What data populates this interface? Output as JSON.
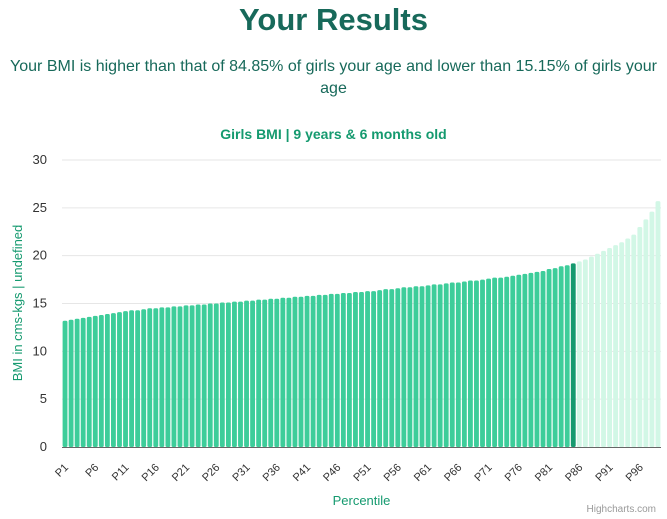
{
  "page": {
    "headline": "Your Results",
    "summary": "Your BMI is higher than that of 84.85% of girls your age and lower than 15.15% of girls your age"
  },
  "chart_data": {
    "type": "bar",
    "title": "Girls BMI | 9 years & 6 months old",
    "xlabel": "Percentile",
    "ylabel": "BMI in cms-kgs | undefined",
    "ylim": [
      0,
      30
    ],
    "yticks": [
      0,
      5,
      10,
      15,
      20,
      25,
      30
    ],
    "grid": true,
    "legend": "none",
    "categories": [
      "P1",
      "P2",
      "P3",
      "P4",
      "P5",
      "P6",
      "P7",
      "P8",
      "P9",
      "P10",
      "P11",
      "P12",
      "P13",
      "P14",
      "P15",
      "P16",
      "P17",
      "P18",
      "P19",
      "P20",
      "P21",
      "P22",
      "P23",
      "P24",
      "P25",
      "P26",
      "P27",
      "P28",
      "P29",
      "P30",
      "P31",
      "P32",
      "P33",
      "P34",
      "P35",
      "P36",
      "P37",
      "P38",
      "P39",
      "P40",
      "P41",
      "P42",
      "P43",
      "P44",
      "P45",
      "P46",
      "P47",
      "P48",
      "P49",
      "P50",
      "P51",
      "P52",
      "P53",
      "P54",
      "P55",
      "P56",
      "P57",
      "P58",
      "P59",
      "P60",
      "P61",
      "P62",
      "P63",
      "P64",
      "P65",
      "P66",
      "P67",
      "P68",
      "P69",
      "P70",
      "P71",
      "P72",
      "P73",
      "P74",
      "P75",
      "P76",
      "P77",
      "P78",
      "P79",
      "P80",
      "P81",
      "P82",
      "P83",
      "P84",
      "P85",
      "P86",
      "P87",
      "P88",
      "P89",
      "P90",
      "P91",
      "P92",
      "P93",
      "P94",
      "P95",
      "P96",
      "P97",
      "P98",
      "P99"
    ],
    "xtick_labels": [
      "P1",
      "P6",
      "P11",
      "P16",
      "P21",
      "P26",
      "P31",
      "P36",
      "P41",
      "P46",
      "P51",
      "P56",
      "P61",
      "P66",
      "P71",
      "P76",
      "P81",
      "P86",
      "P91",
      "P96"
    ],
    "values": [
      13.2,
      13.3,
      13.4,
      13.5,
      13.6,
      13.7,
      13.8,
      13.9,
      14.0,
      14.1,
      14.2,
      14.3,
      14.3,
      14.4,
      14.5,
      14.5,
      14.6,
      14.6,
      14.7,
      14.7,
      14.8,
      14.8,
      14.9,
      14.9,
      15.0,
      15.0,
      15.1,
      15.1,
      15.2,
      15.2,
      15.3,
      15.3,
      15.4,
      15.4,
      15.5,
      15.5,
      15.6,
      15.6,
      15.7,
      15.7,
      15.8,
      15.8,
      15.9,
      15.9,
      16.0,
      16.0,
      16.1,
      16.1,
      16.2,
      16.2,
      16.3,
      16.3,
      16.4,
      16.5,
      16.5,
      16.6,
      16.7,
      16.7,
      16.8,
      16.8,
      16.9,
      17.0,
      17.0,
      17.1,
      17.2,
      17.2,
      17.3,
      17.4,
      17.4,
      17.5,
      17.6,
      17.7,
      17.7,
      17.8,
      17.9,
      18.0,
      18.1,
      18.2,
      18.3,
      18.4,
      18.6,
      18.7,
      18.9,
      19.0,
      19.2,
      19.4,
      19.6,
      19.9,
      20.2,
      20.5,
      20.8,
      21.1,
      21.4,
      21.8,
      22.2,
      23.0,
      23.8,
      24.6,
      25.7
    ],
    "highlight_percentile": "P85",
    "colors": {
      "below": "#3dcd9a",
      "highlight": "#159a6f",
      "above": "#d2f7e6",
      "axis_text": "#333333",
      "title": "#159a6f",
      "grid": "#e6e6e6"
    }
  },
  "credits": "Highcharts.com"
}
